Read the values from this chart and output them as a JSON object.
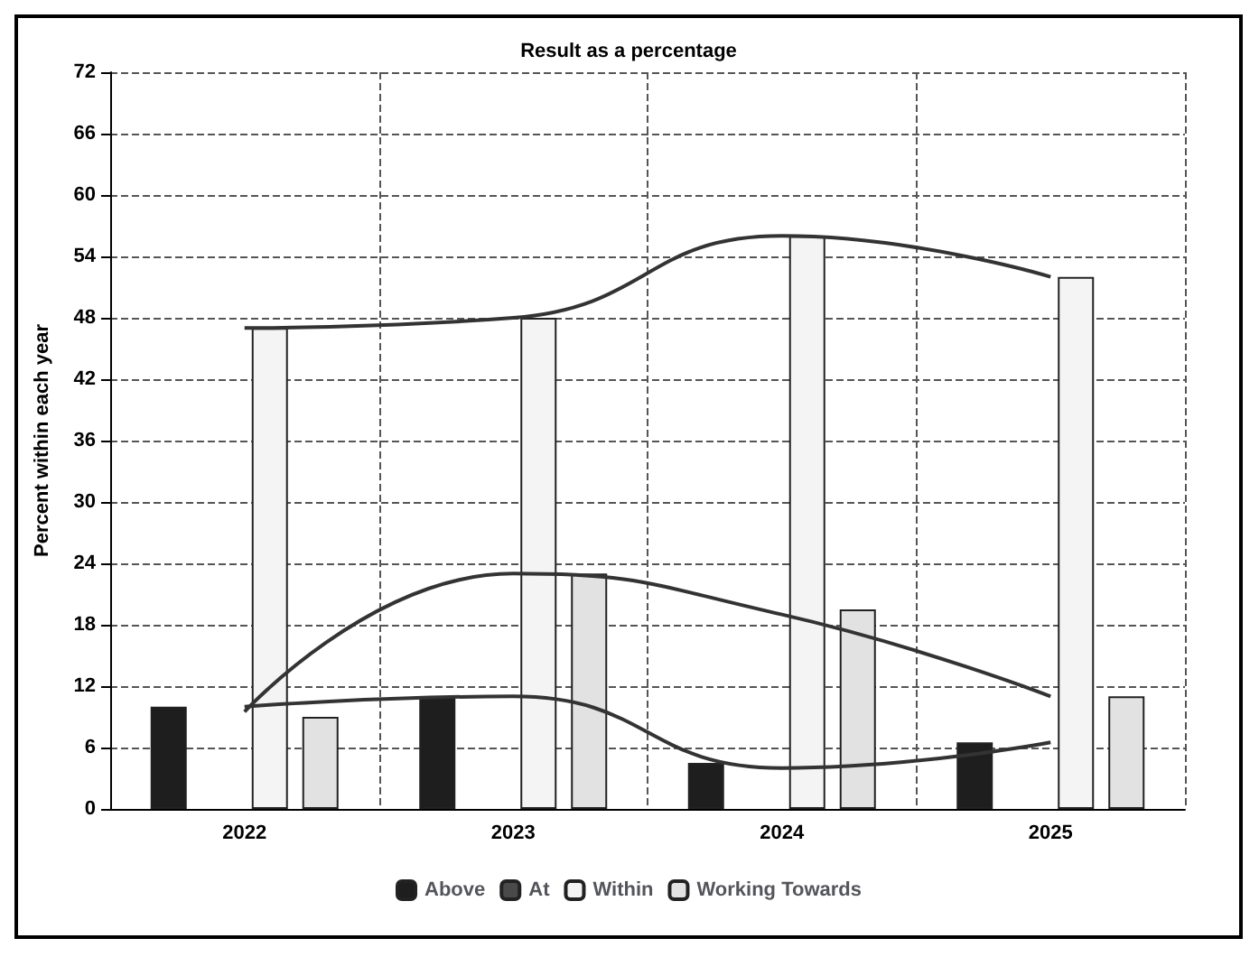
{
  "chart_data": {
    "type": "bar",
    "title": "Result as a percentage",
    "ylabel": "Percent within each year",
    "categories": [
      "2022",
      "2023",
      "2024",
      "2025"
    ],
    "series": [
      {
        "name": "Above",
        "color": "#1e1e1e",
        "values": [
          10,
          11,
          4.5,
          6.5
        ]
      },
      {
        "name": "At",
        "color": "#4a4a4a",
        "values": [
          null,
          null,
          null,
          null
        ]
      },
      {
        "name": "Within",
        "color": "#f4f4f4",
        "values": [
          47,
          48,
          56,
          52
        ]
      },
      {
        "name": "Working Towards",
        "color": "#e2e2e2",
        "values": [
          9,
          23,
          19.5,
          11
        ]
      },
      {
        "type": "line",
        "color": "#333333",
        "values": [
          47,
          48,
          56,
          52
        ]
      },
      {
        "type": "line",
        "color": "#333333",
        "values": [
          9.5,
          23,
          19,
          11
        ]
      },
      {
        "type": "line",
        "color": "#333333",
        "values": [
          10,
          11,
          4,
          6.5
        ]
      }
    ],
    "ylim": [
      0,
      72
    ],
    "yticks": [
      0,
      6,
      12,
      18,
      24,
      30,
      36,
      42,
      48,
      54,
      60,
      66,
      72
    ],
    "grid": true,
    "legend": "bottom",
    "marker": "none"
  }
}
